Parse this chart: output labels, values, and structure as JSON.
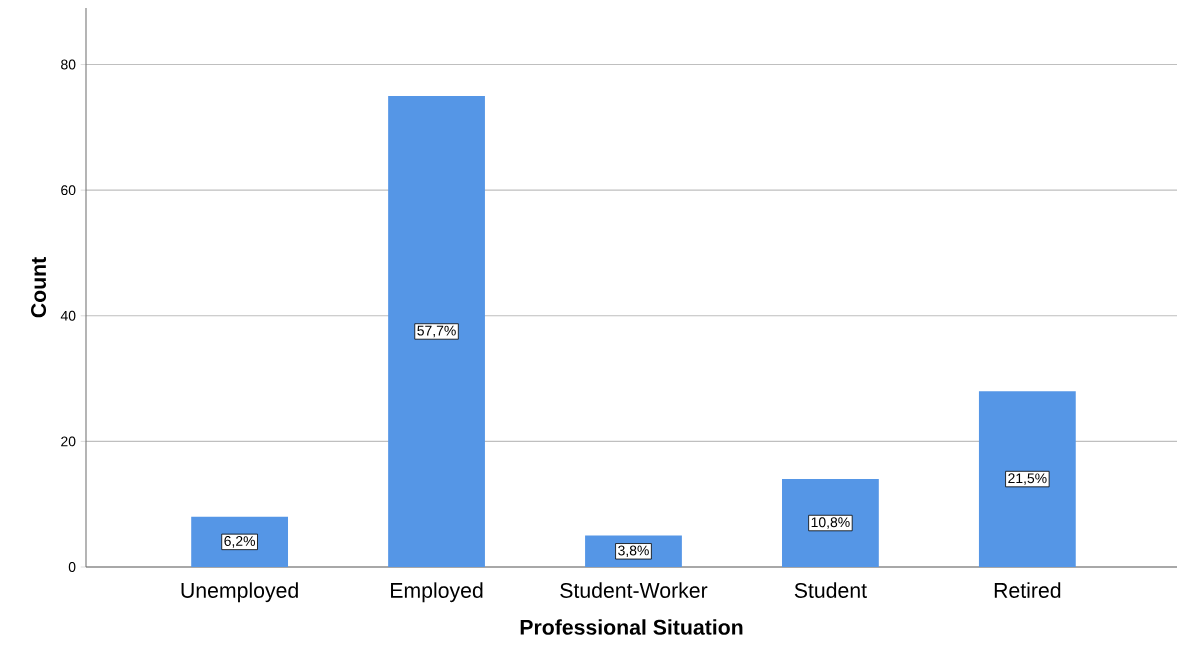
{
  "chart_data": {
    "type": "bar",
    "xlabel": "Professional Situation",
    "ylabel": "Count",
    "categories": [
      "Unemployed",
      "Employed",
      "Student-Worker",
      "Student",
      "Retired"
    ],
    "values": [
      8,
      75,
      5,
      14,
      28
    ],
    "annotations": [
      {
        "text": "6,2%",
        "x": "Unemployed",
        "y": 4
      },
      {
        "text": "57,7%",
        "x": "Employed",
        "y": 37.5
      },
      {
        "text": "3,8%",
        "x": "Student-Worker",
        "y": 2.5
      },
      {
        "text": "10,8%",
        "x": "Student",
        "y": 7
      },
      {
        "text": "21,5%",
        "x": "Retired",
        "y": 14
      }
    ],
    "color": "#5596e6",
    "ylim": [
      0,
      89
    ],
    "yticks": [
      0,
      20,
      40,
      60,
      80
    ],
    "grid": "y"
  }
}
